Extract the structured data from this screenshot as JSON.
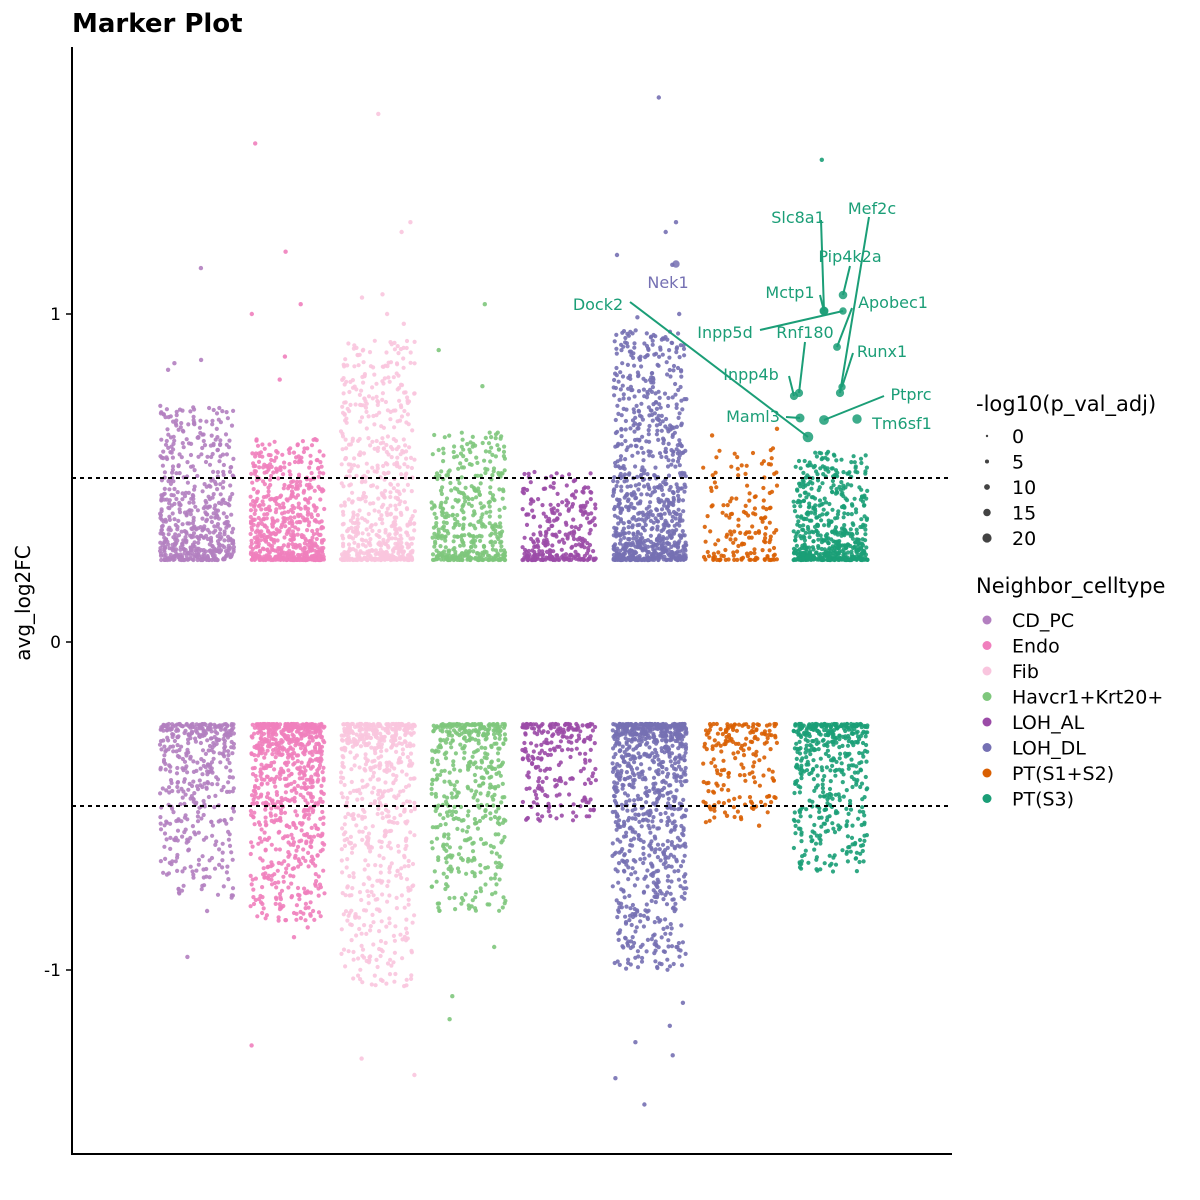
{
  "chart_data": {
    "type": "scatter",
    "title": "Marker Plot",
    "xlabel": "",
    "ylabel": "avg_log2FC",
    "ylim": [
      -1.55,
      1.8
    ],
    "yticks": [
      -1,
      0,
      1
    ],
    "thresholds": [
      0.5,
      -0.5
    ],
    "grid": false,
    "legend_position": "right",
    "categories": [
      "CD_PC",
      "Endo",
      "Fib",
      "Havcr1+Krt20+",
      "LOH_AL",
      "LOH_DL",
      "PT(S1+S2)",
      "PT(S3)"
    ],
    "colors": [
      "#b37fc0",
      "#f07fbd",
      "#f9c5de",
      "#7ec77c",
      "#9b4ba7",
      "#7570b3",
      "#d95f02",
      "#1b9e77"
    ],
    "size_legend": {
      "title": "-log10(p_val_adj)",
      "values": [
        0,
        5,
        10,
        15,
        20
      ]
    },
    "color_legend_title": "Neighbor_celltype",
    "series": [
      {
        "name": "CD_PC",
        "up_count": 560,
        "up_max": 0.72,
        "down_count": 430,
        "down_min": -0.78,
        "outliers": [
          1.14,
          0.86,
          0.85,
          0.83,
          -0.82,
          -0.96
        ]
      },
      {
        "name": "Endo",
        "up_count": 640,
        "up_max": 0.62,
        "down_count": 760,
        "down_min": -0.85,
        "outliers": [
          1.52,
          1.19,
          1.03,
          1.0,
          0.87,
          0.8,
          -0.83,
          -0.87,
          -0.9,
          -1.23
        ]
      },
      {
        "name": "Fib",
        "up_count": 620,
        "up_max": 0.92,
        "down_count": 620,
        "down_min": -1.05,
        "outliers": [
          1.61,
          1.28,
          1.25,
          1.06,
          1.05,
          1.0,
          0.97,
          -1.03,
          -1.27,
          -1.32
        ]
      },
      {
        "name": "Havcr1+Krt20+",
        "up_count": 420,
        "up_max": 0.64,
        "down_count": 460,
        "down_min": -0.82,
        "outliers": [
          1.03,
          0.89,
          0.78,
          -0.93,
          -1.08,
          -1.15
        ]
      },
      {
        "name": "LOH_AL",
        "up_count": 280,
        "up_max": 0.52,
        "down_count": 230,
        "down_min": -0.55,
        "outliers": []
      },
      {
        "name": "LOH_DL",
        "up_count": 860,
        "up_max": 0.95,
        "down_count": 900,
        "down_min": -1.0,
        "outliers": [
          1.66,
          1.28,
          1.25,
          1.18,
          1.15,
          1.0,
          0.99,
          -1.1,
          -1.17,
          -1.22,
          -1.26,
          -1.33,
          -1.41
        ]
      },
      {
        "name": "PT(S1+S2)",
        "up_count": 160,
        "up_max": 0.6,
        "down_count": 180,
        "down_min": -0.55,
        "outliers": [
          0.65,
          0.63,
          -0.53,
          -0.56
        ]
      },
      {
        "name": "PT(S3)",
        "up_count": 560,
        "up_max": 0.58,
        "down_count": 460,
        "down_min": -0.7,
        "outliers": [
          1.47
        ]
      }
    ],
    "labeled_genes": [
      {
        "gene": "Nek1",
        "celltype": "LOH_DL",
        "y": 1.15,
        "size": 6
      },
      {
        "gene": "Dock2",
        "celltype": "PT(S3)",
        "y": 0.62,
        "size": 14
      },
      {
        "gene": "Slc8a1",
        "celltype": "PT(S3)",
        "y": 1.26,
        "size": 10
      },
      {
        "gene": "Mef2c",
        "celltype": "PT(S3)",
        "y": 0.76,
        "size": 8
      },
      {
        "gene": "Pip4k2a",
        "celltype": "PT(S3)",
        "y": 1.06,
        "size": 9
      },
      {
        "gene": "Mctp1",
        "celltype": "PT(S3)",
        "y": 1.01,
        "size": 8
      },
      {
        "gene": "Apobec1",
        "celltype": "PT(S3)",
        "y": 0.9,
        "size": 7
      },
      {
        "gene": "Inpp5d",
        "celltype": "PT(S3)",
        "y": 1.01,
        "size": 6
      },
      {
        "gene": "Rnf180",
        "celltype": "PT(S3)",
        "y": 0.76,
        "size": 8
      },
      {
        "gene": "Runx1",
        "celltype": "PT(S3)",
        "y": 0.78,
        "size": 6
      },
      {
        "gene": "Inpp4b",
        "celltype": "PT(S3)",
        "y": 0.75,
        "size": 8
      },
      {
        "gene": "Ptprc",
        "celltype": "PT(S3)",
        "y": 0.68,
        "size": 12
      },
      {
        "gene": "Maml3",
        "celltype": "PT(S3)",
        "y": 0.69,
        "size": 10
      },
      {
        "gene": "Tm6sf1",
        "celltype": "PT(S3)",
        "y": 0.68,
        "size": 11
      }
    ]
  }
}
